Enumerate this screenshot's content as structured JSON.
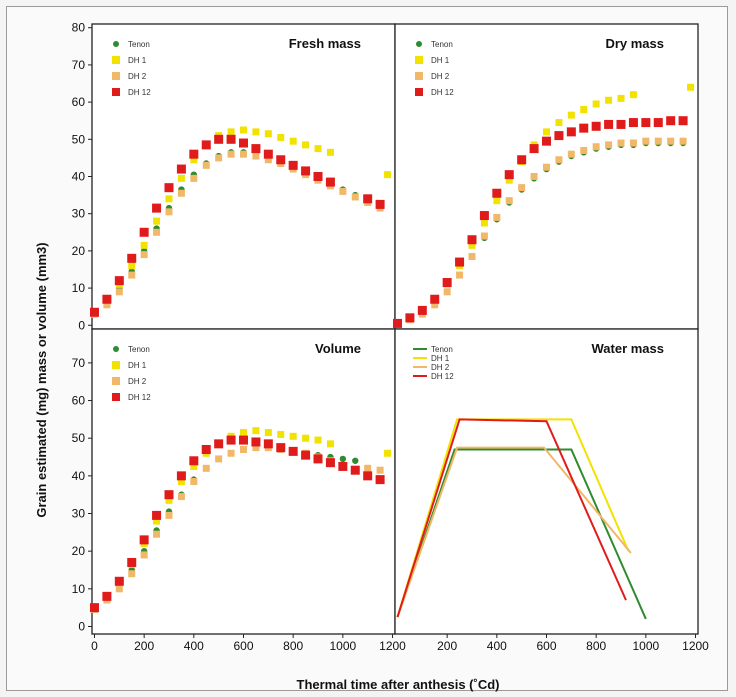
{
  "figure": {
    "xlabel": "Thermal time after anthesis (˚Cd)",
    "ylabel": "Grain estimated (mg) mass or volume (mm3)"
  },
  "colors": {
    "Tenon": "#2e8b2e",
    "DH 1": "#f2e200",
    "DH 2": "#f0b868",
    "DH 12": "#e01b1b"
  },
  "chart_data": [
    {
      "id": "fresh",
      "type": "scatter",
      "title": "Fresh mass",
      "xlim": [
        0,
        1200
      ],
      "ylim": [
        0,
        80
      ],
      "yticks": [
        0,
        10,
        20,
        30,
        40,
        50,
        60,
        70,
        80
      ],
      "xticks": [],
      "legend": "top-left",
      "series": [
        {
          "name": "Tenon",
          "x": [
            0,
            50,
            100,
            150,
            200,
            250,
            300,
            350,
            400,
            450,
            500,
            550,
            600,
            650,
            700,
            750,
            800,
            850,
            900,
            950,
            1000,
            1050,
            1100,
            1150
          ],
          "y": [
            3,
            6,
            10,
            14.5,
            20,
            26,
            31.5,
            36.5,
            40.5,
            43.5,
            45.5,
            46.5,
            46.5,
            46,
            45,
            44,
            42.5,
            41,
            39.5,
            38,
            36.5,
            35,
            33.5,
            32
          ]
        },
        {
          "name": "DH 1",
          "x": [
            0,
            50,
            100,
            150,
            200,
            250,
            300,
            350,
            400,
            450,
            500,
            550,
            600,
            650,
            700,
            750,
            800,
            850,
            900,
            950,
            1180
          ],
          "y": [
            3,
            6.5,
            11,
            16,
            21.5,
            28,
            34,
            39.5,
            44.5,
            48.5,
            51,
            52,
            52.5,
            52,
            51.5,
            50.5,
            49.5,
            48.5,
            47.5,
            46.5,
            40.5
          ]
        },
        {
          "name": "DH 2",
          "x": [
            0,
            50,
            100,
            150,
            200,
            250,
            300,
            350,
            400,
            450,
            500,
            550,
            600,
            650,
            700,
            750,
            800,
            850,
            900,
            950,
            1000,
            1050,
            1100,
            1150
          ],
          "y": [
            3,
            5.5,
            9,
            13.5,
            19,
            25,
            30.5,
            35.5,
            39.5,
            43,
            45,
            46,
            46,
            45.5,
            44.5,
            43.5,
            42,
            40.5,
            39,
            37.5,
            36,
            34.5,
            33,
            31.5
          ]
        },
        {
          "name": "DH 12",
          "x": [
            0,
            50,
            100,
            150,
            200,
            250,
            300,
            350,
            400,
            450,
            500,
            550,
            600,
            650,
            700,
            750,
            800,
            850,
            900,
            950,
            1100,
            1150
          ],
          "y": [
            3.5,
            7,
            12,
            18,
            25,
            31.5,
            37,
            42,
            46,
            48.5,
            50,
            50,
            49,
            47.5,
            46,
            44.5,
            43,
            41.5,
            40,
            38.5,
            34,
            32.5
          ]
        }
      ]
    },
    {
      "id": "dry",
      "type": "scatter",
      "title": "Dry mass",
      "xlim": [
        0,
        1200
      ],
      "ylim": [
        0,
        80
      ],
      "yticks": [],
      "xticks": [],
      "legend": "top-left",
      "series": [
        {
          "name": "Tenon",
          "x": [
            0,
            50,
            100,
            150,
            200,
            250,
            300,
            350,
            400,
            450,
            500,
            550,
            600,
            650,
            700,
            750,
            800,
            850,
            900,
            950,
            1000,
            1050,
            1100,
            1150
          ],
          "y": [
            0.5,
            1.5,
            3,
            5.5,
            9,
            13.5,
            18.5,
            23.5,
            28.5,
            33,
            36.5,
            39.5,
            42,
            44,
            45.5,
            46.5,
            47.5,
            48,
            48.5,
            48.5,
            49,
            49,
            49,
            49
          ]
        },
        {
          "name": "DH 1",
          "x": [
            0,
            50,
            100,
            150,
            200,
            250,
            300,
            350,
            400,
            450,
            500,
            550,
            600,
            650,
            700,
            750,
            800,
            850,
            900,
            950,
            1180
          ],
          "y": [
            0.5,
            2,
            4,
            7,
            11,
            16,
            21.5,
            27.5,
            33.5,
            39,
            44,
            48.5,
            52,
            54.5,
            56.5,
            58,
            59.5,
            60.5,
            61,
            62,
            64
          ]
        },
        {
          "name": "DH 2",
          "x": [
            0,
            50,
            100,
            150,
            200,
            250,
            300,
            350,
            400,
            450,
            500,
            550,
            600,
            650,
            700,
            750,
            800,
            850,
            900,
            950,
            1000,
            1050,
            1100,
            1150
          ],
          "y": [
            0.5,
            1.5,
            3,
            5.5,
            9,
            13.5,
            18.5,
            24,
            29,
            33.5,
            37,
            40,
            42.5,
            44.5,
            46,
            47,
            48,
            48.5,
            49,
            49,
            49.5,
            49.5,
            49.5,
            49.5
          ]
        },
        {
          "name": "DH 12",
          "x": [
            0,
            50,
            100,
            150,
            200,
            250,
            300,
            350,
            400,
            450,
            500,
            550,
            600,
            650,
            700,
            750,
            800,
            850,
            900,
            950,
            1000,
            1050,
            1100,
            1150
          ],
          "y": [
            0.5,
            2,
            4,
            7,
            11.5,
            17,
            23,
            29.5,
            35.5,
            40.5,
            44.5,
            47.5,
            49.5,
            51,
            52,
            53,
            53.5,
            54,
            54,
            54.5,
            54.5,
            54.5,
            55,
            55
          ]
        }
      ]
    },
    {
      "id": "volume",
      "type": "scatter",
      "title": "Volume",
      "xlim": [
        0,
        1200
      ],
      "ylim": [
        0,
        80
      ],
      "yticks": [
        0,
        10,
        20,
        30,
        40,
        50,
        60,
        70
      ],
      "xticks": [
        0,
        200,
        400,
        600,
        800,
        1000,
        1200
      ],
      "legend": "top-left",
      "series": [
        {
          "name": "Tenon",
          "x": [
            0,
            50,
            100,
            150,
            200,
            250,
            300,
            350,
            400,
            450,
            500,
            550,
            600,
            650,
            700,
            750,
            800,
            850,
            900,
            950,
            1000,
            1050
          ],
          "y": [
            4.5,
            7,
            10.5,
            15,
            20,
            25.5,
            30.5,
            35,
            39,
            42,
            44.5,
            46,
            47,
            47.5,
            47.5,
            47,
            46.5,
            46,
            45.5,
            45,
            44.5,
            44
          ]
        },
        {
          "name": "DH 1",
          "x": [
            0,
            50,
            100,
            150,
            200,
            250,
            300,
            350,
            400,
            450,
            500,
            550,
            600,
            650,
            700,
            750,
            800,
            850,
            900,
            950,
            1180
          ],
          "y": [
            4.5,
            7.5,
            11.5,
            16.5,
            22,
            28,
            33.5,
            38.5,
            42.5,
            46,
            48.5,
            50.5,
            51.5,
            52,
            51.5,
            51,
            50.5,
            50,
            49.5,
            48.5,
            46
          ]
        },
        {
          "name": "DH 2",
          "x": [
            0,
            50,
            100,
            150,
            200,
            250,
            300,
            350,
            400,
            450,
            500,
            550,
            600,
            650,
            700,
            750,
            800,
            850,
            900,
            950,
            1100,
            1150
          ],
          "y": [
            4.5,
            7,
            10,
            14,
            19,
            24.5,
            29.5,
            34.5,
            38.5,
            42,
            44.5,
            46,
            47,
            47.5,
            47.5,
            47,
            46.5,
            46,
            45,
            44,
            42,
            41.5
          ]
        },
        {
          "name": "DH 12",
          "x": [
            0,
            50,
            100,
            150,
            200,
            250,
            300,
            350,
            400,
            450,
            500,
            550,
            600,
            650,
            700,
            750,
            800,
            850,
            900,
            950,
            1000,
            1050,
            1100,
            1150
          ],
          "y": [
            5,
            8,
            12,
            17,
            23,
            29.5,
            35,
            40,
            44,
            47,
            48.5,
            49.5,
            49.5,
            49,
            48.5,
            47.5,
            46.5,
            45.5,
            44.5,
            43.5,
            42.5,
            41.5,
            40,
            39
          ]
        }
      ]
    },
    {
      "id": "water",
      "type": "line",
      "title": "Water mass",
      "xlim": [
        0,
        1200
      ],
      "ylim": [
        0,
        80
      ],
      "yticks": [],
      "xticks": [
        200,
        400,
        600,
        800,
        1000,
        1200
      ],
      "legend": "top-left",
      "series": [
        {
          "name": "Tenon",
          "x": [
            0,
            230,
            700,
            1000
          ],
          "y": [
            2.5,
            47,
            47,
            2
          ]
        },
        {
          "name": "DH 1",
          "x": [
            0,
            240,
            700,
            930
          ],
          "y": [
            2.5,
            55,
            55,
            20
          ]
        },
        {
          "name": "DH 2",
          "x": [
            0,
            240,
            590,
            940
          ],
          "y": [
            2.5,
            47.5,
            47.5,
            19.5
          ]
        },
        {
          "name": "DH 12",
          "x": [
            0,
            250,
            600,
            920
          ],
          "y": [
            2.5,
            55,
            54.5,
            7
          ]
        }
      ]
    }
  ]
}
